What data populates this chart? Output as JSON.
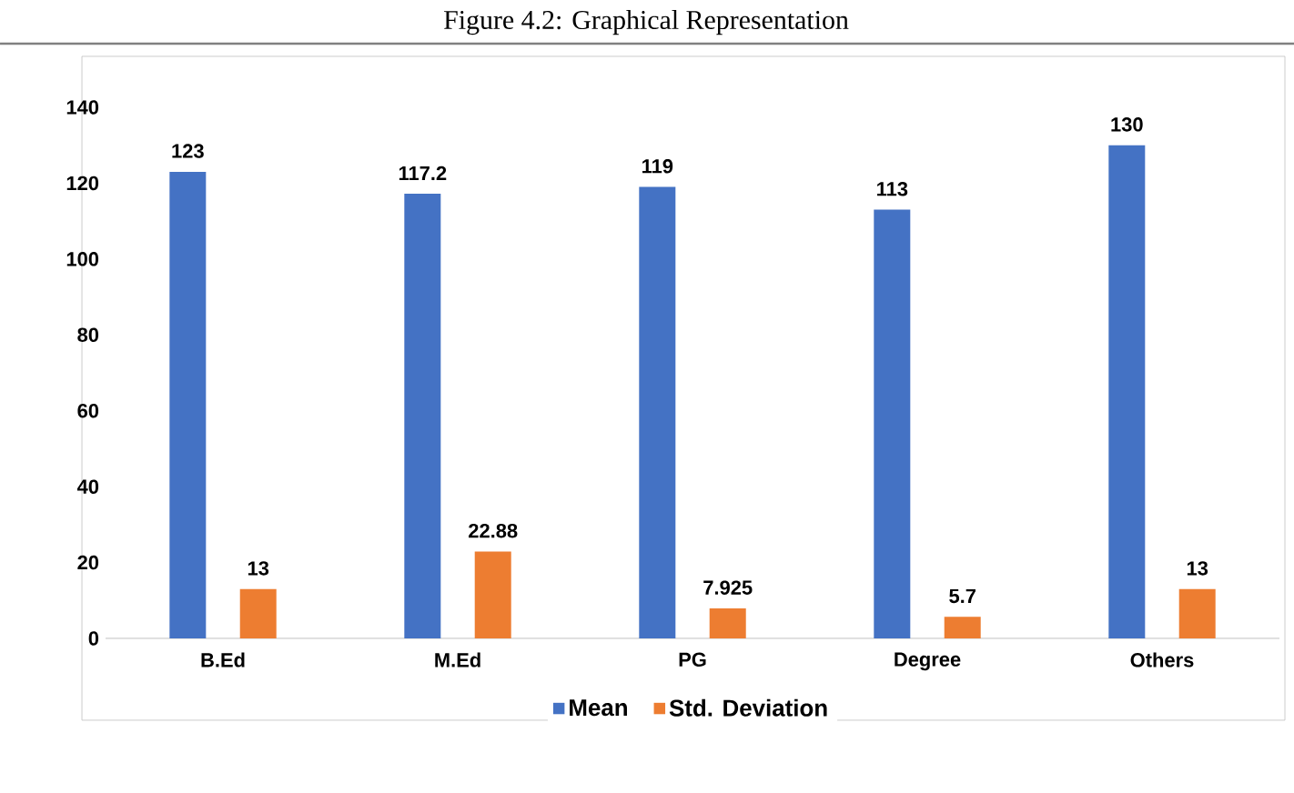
{
  "chart_data": {
    "type": "bar",
    "title": "Figure 4.2: Graphical Representation",
    "categories": [
      "B.Ed",
      "M.Ed",
      "PG",
      "Degree",
      "Others"
    ],
    "series": [
      {
        "name": "Mean",
        "color": "#4472c4",
        "values": [
          123,
          117.2,
          119,
          113,
          130
        ]
      },
      {
        "name": "Std. Deviation",
        "color": "#ed7d31",
        "values": [
          13,
          22.88,
          7.925,
          5.7,
          13
        ]
      }
    ],
    "ylim": [
      0,
      140
    ],
    "yticks": [
      0,
      20,
      40,
      60,
      80,
      100,
      120,
      140
    ],
    "data_labels": true,
    "legend": "bottom",
    "grid": false
  }
}
